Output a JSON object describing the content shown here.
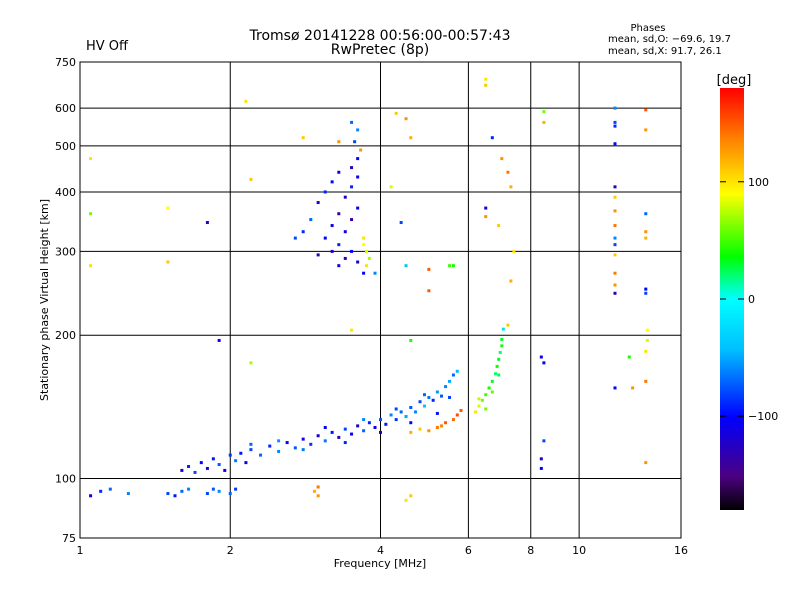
{
  "header": {
    "hv_status": "HV Off",
    "title": "Tromsø 20141228 00:56:00-00:57:43",
    "subtitle": "RwPretec (8p)",
    "stats_title": "Phases",
    "stats_o": "mean, sd,O: −69.6, 19.7",
    "stats_x": "mean, sd,X:  91.7, 26.1"
  },
  "colors": {
    "hv_status": "#cc0000",
    "axis": "#000000",
    "background": "#ffffff"
  },
  "chart_data": {
    "type": "scatter",
    "xlabel": "Frequency [MHz]",
    "ylabel": "Stationary phase Virtual Height [km]",
    "xscale": "log",
    "yscale": "log",
    "xlim": [
      1,
      16
    ],
    "ylim": [
      75,
      750
    ],
    "grid": true,
    "xticks": [
      1,
      2,
      4,
      6,
      8,
      10,
      16
    ],
    "xtick_labels": [
      "1",
      "2",
      "4",
      "6",
      "8",
      "10",
      "16"
    ],
    "yticks": [
      75,
      100,
      200,
      300,
      400,
      500,
      600,
      750
    ],
    "ytick_labels": [
      "75",
      "100",
      "200",
      "300",
      "400",
      "500",
      "600",
      "750"
    ],
    "colorbar": {
      "label": "[deg]",
      "range": [
        -180,
        180
      ],
      "ticks": [
        100,
        0,
        -100
      ],
      "tick_labels": [
        "100",
        "0",
        "−100"
      ],
      "colormap": "rainbow"
    },
    "series": [
      {
        "color_by": "phase_deg",
        "points": [
          [
            1.05,
            92,
            -110
          ],
          [
            1.1,
            94,
            -90
          ],
          [
            1.15,
            95,
            -70
          ],
          [
            1.25,
            93,
            -60
          ],
          [
            1.5,
            93,
            -80
          ],
          [
            1.55,
            92,
            -95
          ],
          [
            1.6,
            94,
            -70
          ],
          [
            1.65,
            95,
            -60
          ],
          [
            1.8,
            93,
            -80
          ],
          [
            1.85,
            95,
            -75
          ],
          [
            1.9,
            94,
            -60
          ],
          [
            2.0,
            93,
            -70
          ],
          [
            2.05,
            95,
            -85
          ],
          [
            1.6,
            104,
            -110
          ],
          [
            1.65,
            106,
            -90
          ],
          [
            1.7,
            103,
            -80
          ],
          [
            1.75,
            108,
            -100
          ],
          [
            1.8,
            105,
            -120
          ],
          [
            1.85,
            110,
            -95
          ],
          [
            1.9,
            107,
            -75
          ],
          [
            1.95,
            104,
            -105
          ],
          [
            2.0,
            112,
            -85
          ],
          [
            2.05,
            109,
            -65
          ],
          [
            2.1,
            113,
            -95
          ],
          [
            2.15,
            108,
            -115
          ],
          [
            2.2,
            115,
            -80
          ],
          [
            2.3,
            112,
            -70
          ],
          [
            2.4,
            117,
            -90
          ],
          [
            2.5,
            114,
            -60
          ],
          [
            2.6,
            119,
            -100
          ],
          [
            2.7,
            116,
            -75
          ],
          [
            2.8,
            121,
            -110
          ],
          [
            2.9,
            118,
            -85
          ],
          [
            3.0,
            123,
            -120
          ],
          [
            3.1,
            120,
            -65
          ],
          [
            3.2,
            125,
            -95
          ],
          [
            3.3,
            122,
            -130
          ],
          [
            3.4,
            127,
            -80
          ],
          [
            3.5,
            124,
            -105
          ],
          [
            3.6,
            129,
            -120
          ],
          [
            3.7,
            126,
            -70
          ],
          [
            3.8,
            131,
            -90
          ],
          [
            3.9,
            128,
            -110
          ],
          [
            4.0,
            133,
            -75
          ],
          [
            4.1,
            130,
            -95
          ],
          [
            4.2,
            136,
            -60
          ],
          [
            4.3,
            133,
            -85
          ],
          [
            4.4,
            138,
            -70
          ],
          [
            4.5,
            135,
            -50
          ],
          [
            4.6,
            141,
            -75
          ],
          [
            4.7,
            138,
            -60
          ],
          [
            4.8,
            145,
            -80
          ],
          [
            4.9,
            142,
            -40
          ],
          [
            5.0,
            148,
            -65
          ],
          [
            5.1,
            146,
            -90
          ],
          [
            5.2,
            152,
            -55
          ],
          [
            5.3,
            149,
            -75
          ],
          [
            5.4,
            156,
            -60
          ],
          [
            5.5,
            160,
            -50
          ],
          [
            5.6,
            165,
            -70
          ],
          [
            5.7,
            168,
            -45
          ],
          [
            2.2,
            118,
            -70
          ],
          [
            2.5,
            120,
            -55
          ],
          [
            2.8,
            115,
            -65
          ],
          [
            3.1,
            128,
            -100
          ],
          [
            3.4,
            119,
            -90
          ],
          [
            3.7,
            133,
            -60
          ],
          [
            4.0,
            125,
            -115
          ],
          [
            4.3,
            140,
            -80
          ],
          [
            4.6,
            131,
            -100
          ],
          [
            4.9,
            150,
            -70
          ],
          [
            5.2,
            137,
            -95
          ],
          [
            5.5,
            148,
            -80
          ],
          [
            5.0,
            126,
            130
          ],
          [
            5.2,
            128,
            140
          ],
          [
            5.4,
            131,
            150
          ],
          [
            5.6,
            133,
            145
          ],
          [
            5.7,
            136,
            155
          ],
          [
            5.8,
            139,
            150
          ],
          [
            4.6,
            125,
            120
          ],
          [
            4.8,
            127,
            110
          ],
          [
            5.3,
            129,
            135
          ],
          [
            6.2,
            138,
            100
          ],
          [
            6.3,
            142,
            80
          ],
          [
            6.4,
            146,
            60
          ],
          [
            6.5,
            150,
            50
          ],
          [
            6.6,
            155,
            40
          ],
          [
            6.7,
            160,
            30
          ],
          [
            6.8,
            166,
            20
          ],
          [
            6.85,
            172,
            40
          ],
          [
            6.9,
            178,
            30
          ],
          [
            6.95,
            184,
            20
          ],
          [
            7.0,
            190,
            40
          ],
          [
            7.0,
            196,
            30
          ],
          [
            6.3,
            147,
            75
          ],
          [
            6.5,
            140,
            60
          ],
          [
            6.7,
            152,
            55
          ],
          [
            6.9,
            165,
            25
          ],
          [
            7.05,
            206,
            -20
          ],
          [
            3.3,
            280,
            -110
          ],
          [
            3.4,
            290,
            -130
          ],
          [
            3.5,
            300,
            -100
          ],
          [
            3.6,
            285,
            -120
          ],
          [
            3.3,
            310,
            -90
          ],
          [
            3.4,
            330,
            -115
          ],
          [
            3.5,
            350,
            -140
          ],
          [
            3.6,
            370,
            -100
          ],
          [
            3.4,
            390,
            -120
          ],
          [
            3.5,
            410,
            -90
          ],
          [
            3.6,
            430,
            -110
          ],
          [
            3.5,
            450,
            -130
          ],
          [
            3.6,
            470,
            -100
          ],
          [
            3.55,
            510,
            -80
          ],
          [
            3.5,
            560,
            -70
          ],
          [
            3.6,
            540,
            -60
          ],
          [
            3.2,
            300,
            -120
          ],
          [
            3.1,
            320,
            -100
          ],
          [
            3.0,
            295,
            -130
          ],
          [
            3.2,
            340,
            -110
          ],
          [
            3.3,
            360,
            -140
          ],
          [
            3.0,
            380,
            -120
          ],
          [
            3.1,
            400,
            -90
          ],
          [
            3.2,
            420,
            -100
          ],
          [
            3.3,
            440,
            -110
          ],
          [
            2.9,
            350,
            -70
          ],
          [
            2.8,
            330,
            -90
          ],
          [
            2.7,
            320,
            -80
          ],
          [
            3.7,
            310,
            90
          ],
          [
            3.75,
            300,
            80
          ],
          [
            3.8,
            290,
            70
          ],
          [
            3.75,
            280,
            100
          ],
          [
            3.7,
            270,
            -100
          ],
          [
            3.9,
            270,
            -60
          ],
          [
            3.65,
            490,
            130
          ],
          [
            3.7,
            320,
            100
          ],
          [
            4.5,
            280,
            -40
          ],
          [
            5.0,
            275,
            150
          ],
          [
            5.5,
            280,
            50
          ],
          [
            5.6,
            280,
            40
          ],
          [
            2.15,
            620,
            100
          ],
          [
            2.2,
            425,
            110
          ],
          [
            2.8,
            520,
            110
          ],
          [
            3.3,
            510,
            130
          ],
          [
            4.3,
            585,
            110
          ],
          [
            4.5,
            570,
            130
          ],
          [
            4.6,
            520,
            120
          ],
          [
            4.2,
            410,
            80
          ],
          [
            1.05,
            470,
            100
          ],
          [
            1.05,
            360,
            60
          ],
          [
            1.05,
            280,
            100
          ],
          [
            1.5,
            370,
            90
          ],
          [
            1.5,
            285,
            110
          ],
          [
            1.8,
            345,
            -120
          ],
          [
            1.9,
            195,
            -110
          ],
          [
            2.2,
            175,
            70
          ],
          [
            3.5,
            205,
            100
          ],
          [
            4.4,
            345,
            -80
          ],
          [
            4.6,
            195,
            40
          ],
          [
            5.0,
            248,
            150
          ],
          [
            6.5,
            690,
            100
          ],
          [
            6.5,
            670,
            110
          ],
          [
            6.7,
            520,
            -90
          ],
          [
            7.0,
            470,
            130
          ],
          [
            7.2,
            440,
            140
          ],
          [
            7.3,
            410,
            120
          ],
          [
            6.5,
            370,
            -120
          ],
          [
            6.5,
            355,
            130
          ],
          [
            6.9,
            340,
            110
          ],
          [
            7.3,
            260,
            120
          ],
          [
            7.4,
            300,
            100
          ],
          [
            7.2,
            210,
            110
          ],
          [
            8.5,
            590,
            60
          ],
          [
            8.5,
            560,
            120
          ],
          [
            8.4,
            180,
            -110
          ],
          [
            8.5,
            175,
            -100
          ],
          [
            8.5,
            120,
            -80
          ],
          [
            8.4,
            110,
            -120
          ],
          [
            8.4,
            105,
            -100
          ],
          [
            11.8,
            600,
            -60
          ],
          [
            11.8,
            560,
            -80
          ],
          [
            11.8,
            550,
            -90
          ],
          [
            11.8,
            505,
            -100
          ],
          [
            11.8,
            410,
            -130
          ],
          [
            11.8,
            390,
            110
          ],
          [
            11.8,
            365,
            130
          ],
          [
            11.8,
            340,
            140
          ],
          [
            11.8,
            320,
            -60
          ],
          [
            11.8,
            310,
            -80
          ],
          [
            11.8,
            295,
            110
          ],
          [
            11.8,
            270,
            140
          ],
          [
            11.8,
            255,
            130
          ],
          [
            11.8,
            245,
            -130
          ],
          [
            11.8,
            155,
            -100
          ],
          [
            12.8,
            155,
            130
          ],
          [
            12.6,
            180,
            40
          ],
          [
            13.6,
            595,
            150
          ],
          [
            13.6,
            540,
            130
          ],
          [
            13.6,
            360,
            -70
          ],
          [
            13.6,
            330,
            130
          ],
          [
            13.6,
            320,
            120
          ],
          [
            13.6,
            250,
            -100
          ],
          [
            13.6,
            245,
            -80
          ],
          [
            13.7,
            205,
            90
          ],
          [
            13.7,
            195,
            80
          ],
          [
            13.6,
            185,
            100
          ],
          [
            13.6,
            160,
            140
          ],
          [
            13.6,
            108,
            130
          ],
          [
            3.0,
            92,
            130
          ],
          [
            2.95,
            94,
            120
          ],
          [
            3.0,
            96,
            140
          ],
          [
            4.5,
            90,
            100
          ],
          [
            4.6,
            92,
            110
          ]
        ]
      }
    ]
  }
}
